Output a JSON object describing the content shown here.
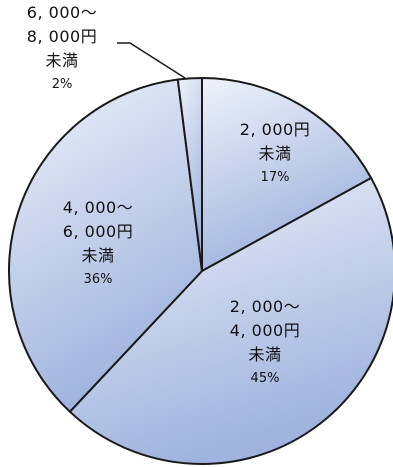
{
  "chart_data": {
    "type": "pie",
    "slices": [
      {
        "label_lines": [
          "2, 000円",
          "未満"
        ],
        "percent_label": "17%",
        "value": 17
      },
      {
        "label_lines": [
          "2, 000～",
          "4, 000円",
          "未満"
        ],
        "percent_label": "45%",
        "value": 45
      },
      {
        "label_lines": [
          "4, 000～",
          "6, 000円",
          "未満"
        ],
        "percent_label": "36%",
        "value": 36
      },
      {
        "label_lines": [
          "6, 000～",
          "8, 000円",
          "未満"
        ],
        "percent_label": "2%",
        "value": 2
      }
    ],
    "start_angle_deg": 0,
    "direction": "clockwise",
    "fill_gradient": [
      "#eef2fa",
      "#9fb3de"
    ],
    "stroke_color": "#1a1a1a"
  }
}
